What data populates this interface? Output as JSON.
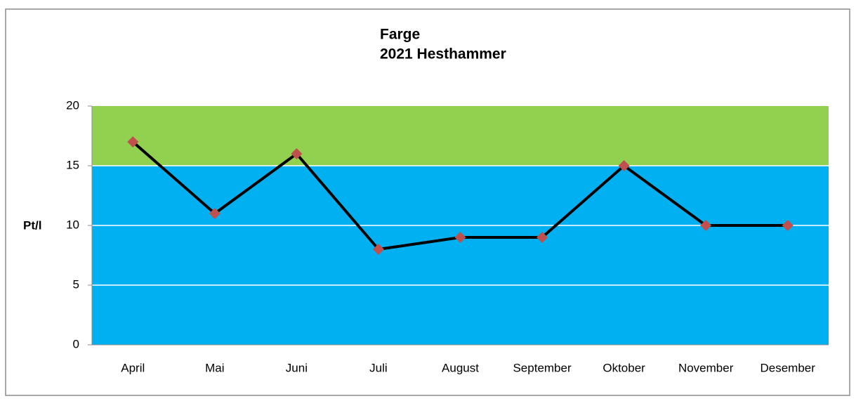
{
  "chart_data": {
    "type": "line",
    "title": "Farge",
    "subtitle": "2021 Hesthammer",
    "y_label": "Pt/l",
    "categories": [
      "April",
      "Mai",
      "Juni",
      "Juli",
      "August",
      "September",
      "Oktober",
      "November",
      "Desember"
    ],
    "series": [
      {
        "name": "Farge",
        "color": "#000000",
        "marker_color": "#c0504d",
        "values": [
          17,
          11,
          16,
          8,
          9,
          9,
          15,
          10,
          10
        ]
      }
    ],
    "bands": [
      {
        "from": 0,
        "to": 15,
        "color": "#00b0f0"
      },
      {
        "from": 15,
        "to": 20,
        "color": "#92d050"
      }
    ],
    "ylim": [
      0,
      20
    ],
    "yticks": [
      0,
      5,
      10,
      15,
      20
    ],
    "grid": true,
    "legend": false
  }
}
